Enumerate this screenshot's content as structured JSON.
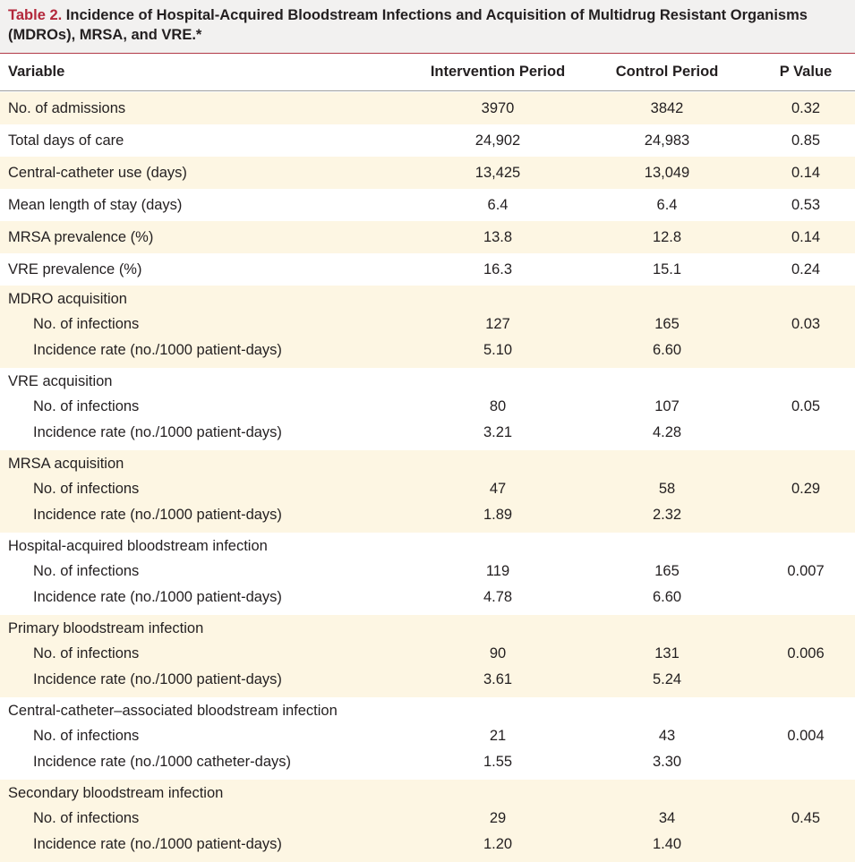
{
  "title": {
    "label": "Table 2.",
    "text": " Incidence of Hospital-Acquired Bloodstream Infections and Acquisition of Multidrug Resistant Organisms (MDROs), MRSA, and VRE.*"
  },
  "columns": [
    "Variable",
    "Intervention Period",
    "Control Period",
    "P Value"
  ],
  "simple_rows": [
    {
      "variable": "No. of admissions",
      "intervention": "3970",
      "control": "3842",
      "p": "0.32"
    },
    {
      "variable": "Total days of care",
      "intervention": "24,902",
      "control": "24,983",
      "p": "0.85"
    },
    {
      "variable": "Central-catheter use (days)",
      "intervention": "13,425",
      "control": "13,049",
      "p": "0.14"
    },
    {
      "variable": "Mean length of stay (days)",
      "intervention": "6.4",
      "control": "6.4",
      "p": "0.53"
    },
    {
      "variable": "MRSA prevalence (%)",
      "intervention": "13.8",
      "control": "12.8",
      "p": "0.14"
    },
    {
      "variable": "VRE prevalence (%)",
      "intervention": "16.3",
      "control": "15.1",
      "p": "0.24"
    }
  ],
  "groups": [
    {
      "heading": "MDRO acquisition",
      "infections_label": "No. of infections",
      "infections_int": "127",
      "infections_ctl": "165",
      "p": "0.03",
      "rate_label": "Incidence rate (no./1000 patient-days)",
      "rate_int": "5.10",
      "rate_ctl": "6.60"
    },
    {
      "heading": "VRE acquisition",
      "infections_label": "No. of infections",
      "infections_int": "80",
      "infections_ctl": "107",
      "p": "0.05",
      "rate_label": "Incidence rate (no./1000 patient-days)",
      "rate_int": "3.21",
      "rate_ctl": "4.28"
    },
    {
      "heading": "MRSA acquisition",
      "infections_label": "No. of infections",
      "infections_int": "47",
      "infections_ctl": "58",
      "p": "0.29",
      "rate_label": "Incidence rate (no./1000 patient-days)",
      "rate_int": "1.89",
      "rate_ctl": "2.32"
    },
    {
      "heading": "Hospital-acquired bloodstream infection",
      "infections_label": "No. of infections",
      "infections_int": "119",
      "infections_ctl": "165",
      "p": "0.007",
      "rate_label": "Incidence rate (no./1000 patient-days)",
      "rate_int": "4.78",
      "rate_ctl": "6.60"
    },
    {
      "heading": "Primary bloodstream infection",
      "infections_label": "No. of infections",
      "infections_int": "90",
      "infections_ctl": "131",
      "p": "0.006",
      "rate_label": "Incidence rate (no./1000 patient-days)",
      "rate_int": "3.61",
      "rate_ctl": "5.24"
    },
    {
      "heading": "Central-catheter–associated bloodstream infection",
      "infections_label": "No. of infections",
      "infections_int": "21",
      "infections_ctl": "43",
      "p": "0.004",
      "rate_label": "Incidence rate (no./1000 catheter-days)",
      "rate_int": "1.55",
      "rate_ctl": "3.30"
    },
    {
      "heading": "Secondary bloodstream infection",
      "infections_label": "No. of infections",
      "infections_int": "29",
      "infections_ctl": "34",
      "p": "0.45",
      "rate_label": "Incidence rate (no./1000 patient-days)",
      "rate_int": "1.20",
      "rate_ctl": "1.40"
    }
  ],
  "colors": {
    "title_label": "#b3283b",
    "row_shade": "#fdf6e3",
    "title_bg": "#f2f1f0",
    "rule": "#b23a48"
  }
}
